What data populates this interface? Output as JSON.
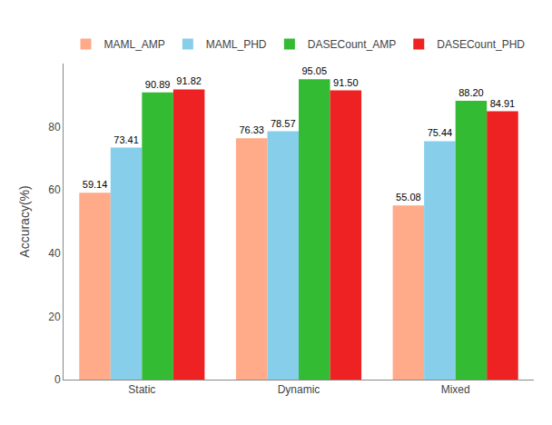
{
  "chart_data": {
    "type": "bar",
    "categories": [
      "Static",
      "Dynamic",
      "Mixed"
    ],
    "series": [
      {
        "name": "MAML_AMP",
        "color": "#FFAA88",
        "values": [
          59.14,
          76.33,
          55.08
        ],
        "value_labels": [
          "59.14",
          "76.33",
          "55.08"
        ]
      },
      {
        "name": "MAML_PHD",
        "color": "#87CEEB",
        "values": [
          73.41,
          78.57,
          75.44
        ],
        "value_labels": [
          "73.41",
          "78.57",
          "75.44"
        ]
      },
      {
        "name": "DASECount_AMP",
        "color": "#33BB33",
        "values": [
          90.89,
          95.05,
          88.2
        ],
        "value_labels": [
          "90.89",
          "95.05",
          "88.20"
        ]
      },
      {
        "name": "DASECount_PHD",
        "color": "#EE2222",
        "values": [
          91.82,
          91.5,
          84.91
        ],
        "value_labels": [
          "91.82",
          "91.50",
          "84.91"
        ]
      }
    ],
    "ylabel": "Accuracy(%)",
    "ylim": [
      0,
      100
    ],
    "yticks": [
      0,
      20,
      40,
      60,
      80
    ],
    "grid": false,
    "legend": "top",
    "data_labels": true
  }
}
